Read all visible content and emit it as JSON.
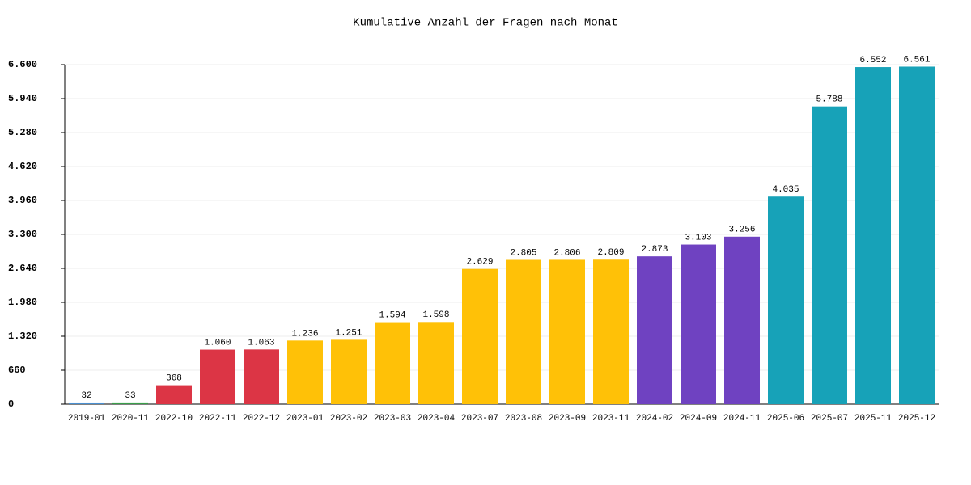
{
  "chart_data": {
    "type": "bar",
    "title": "Kumulative Anzahl der Fragen nach Monat",
    "categories": [
      "2019-01",
      "2020-11",
      "2022-10",
      "2022-11",
      "2022-12",
      "2023-01",
      "2023-02",
      "2023-03",
      "2023-04",
      "2023-07",
      "2023-08",
      "2023-09",
      "2023-11",
      "2024-02",
      "2024-09",
      "2024-11",
      "2025-06",
      "2025-07",
      "2025-11",
      "2025-12"
    ],
    "values": [
      32,
      33,
      368,
      1060,
      1063,
      1236,
      1251,
      1594,
      1598,
      2629,
      2805,
      2806,
      2809,
      2873,
      3103,
      3256,
      4035,
      5788,
      6552,
      6561
    ],
    "value_labels": [
      "32",
      "33",
      "368",
      "1.060",
      "1.063",
      "1.236",
      "1.251",
      "1.594",
      "1.598",
      "2.629",
      "2.805",
      "2.806",
      "2.809",
      "2.873",
      "3.103",
      "3.256",
      "4.035",
      "5.788",
      "6.552",
      "6.561"
    ],
    "colors": [
      "#4a8fd0",
      "#3a9e4a",
      "#dc3545",
      "#dc3545",
      "#dc3545",
      "#ffc107",
      "#ffc107",
      "#ffc107",
      "#ffc107",
      "#ffc107",
      "#ffc107",
      "#ffc107",
      "#ffc107",
      "#6f42c1",
      "#6f42c1",
      "#6f42c1",
      "#17a2b8",
      "#17a2b8",
      "#17a2b8",
      "#17a2b8"
    ],
    "ylim": [
      0,
      6600
    ],
    "yticks": [
      0,
      660,
      {
        "value": 1320,
        "label": "1.320"
      },
      {
        "value": 1980,
        "label": "1.980"
      },
      {
        "value": 2640,
        "label": "2.640"
      },
      {
        "value": 3300,
        "label": "3.300"
      },
      {
        "value": 3960,
        "label": "3.960"
      },
      {
        "value": 4620,
        "label": "4.620"
      },
      {
        "value": 5280,
        "label": "5.280"
      },
      {
        "value": 5940,
        "label": "5.940"
      },
      {
        "value": 6600,
        "label": "6.600"
      }
    ],
    "grid": true
  }
}
